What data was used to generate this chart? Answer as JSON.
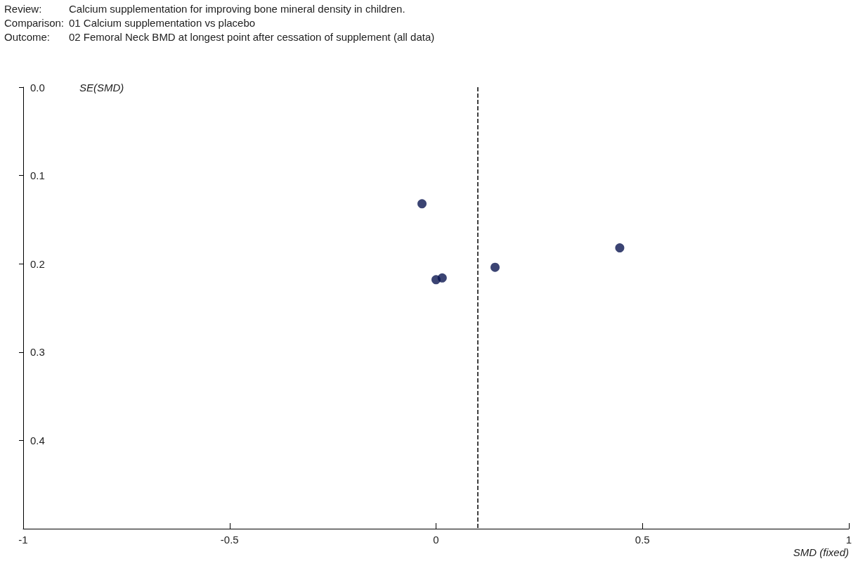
{
  "chart_data": {
    "type": "scatter",
    "annotations": [
      "Review:",
      "Calcium supplementation for improving bone mineral density in children.",
      "Comparison:",
      "01 Calcium supplementation vs placebo",
      "Outcome:",
      "02 Femoral Neck BMD at longest point after cessation of supplement (all data)"
    ],
    "xlabel": "SMD (fixed)",
    "ylabel": "SE(SMD)",
    "x": [
      -0.034,
      0.0,
      0.015,
      0.143,
      0.445
    ],
    "values": [
      0.132,
      0.218,
      0.216,
      0.204,
      0.182
    ],
    "color": "#0a1550",
    "marker": "circle",
    "xlim": [
      -1,
      1
    ],
    "xticks": [
      -1,
      -0.5,
      0,
      0.5,
      1
    ],
    "ylim": [
      0.5,
      0
    ],
    "yticks": [
      {
        "value": 0,
        "label": "0.0"
      },
      0.1,
      0.2,
      0.3,
      0.4
    ],
    "ref_lines": [
      {
        "axis": "x",
        "value": 0.1,
        "color": "#000000",
        "line_style": "dashed"
      }
    ],
    "grid": false
  }
}
